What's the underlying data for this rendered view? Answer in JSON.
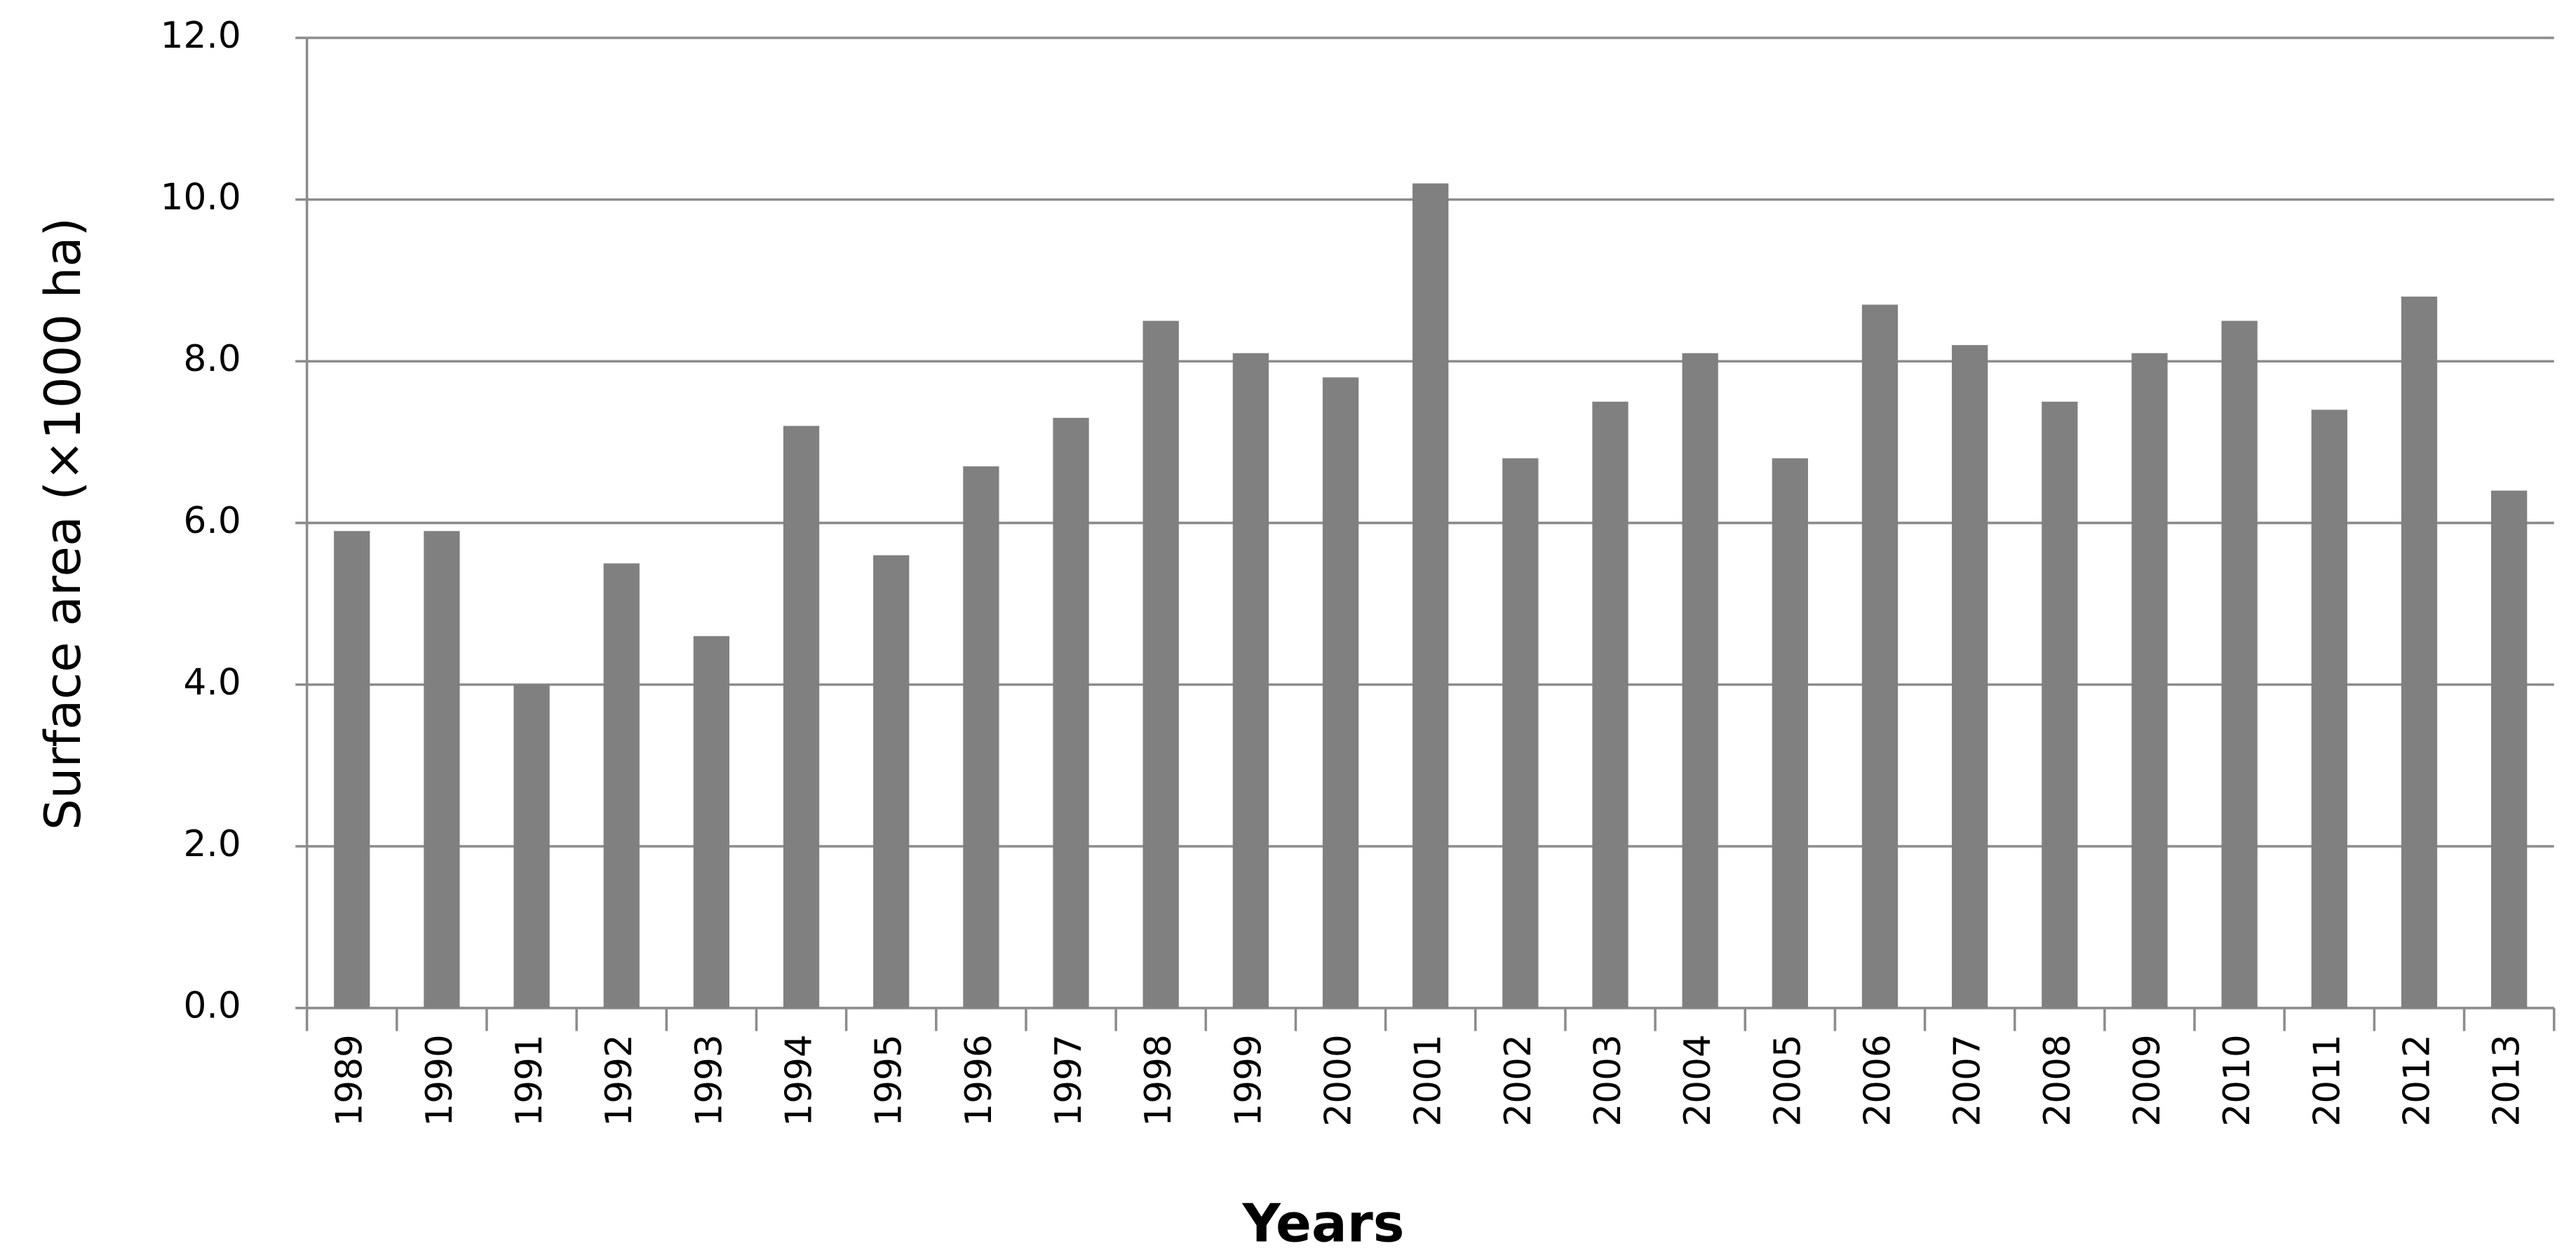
{
  "chart_data": {
    "type": "bar",
    "x_label": "Years",
    "y_label": "Surface area (×1000 ha)",
    "categories": [
      "1989",
      "1990",
      "1991",
      "1992",
      "1993",
      "1994",
      "1995",
      "1996",
      "1997",
      "1998",
      "1999",
      "2000",
      "2001",
      "2002",
      "2003",
      "2004",
      "2005",
      "2006",
      "2007",
      "2008",
      "2009",
      "2010",
      "2011",
      "2012",
      "2013"
    ],
    "values": [
      5.9,
      5.9,
      4.0,
      5.5,
      4.6,
      7.2,
      5.6,
      6.7,
      7.3,
      8.5,
      8.1,
      7.8,
      10.2,
      6.8,
      7.5,
      8.1,
      6.8,
      8.7,
      8.2,
      7.5,
      8.1,
      8.5,
      7.4,
      8.8,
      6.4
    ],
    "color": "#808080",
    "ylim": [
      0,
      12
    ],
    "yticks": [
      {
        "value": 0,
        "label": "0.0"
      },
      {
        "value": 2,
        "label": "2.0"
      },
      {
        "value": 4,
        "label": "4.0"
      },
      {
        "value": 6,
        "label": "6.0"
      },
      {
        "value": 8,
        "label": "8.0"
      },
      {
        "value": 10,
        "label": "10.0"
      },
      {
        "value": 12,
        "label": "12.0"
      }
    ],
    "grid": true
  }
}
